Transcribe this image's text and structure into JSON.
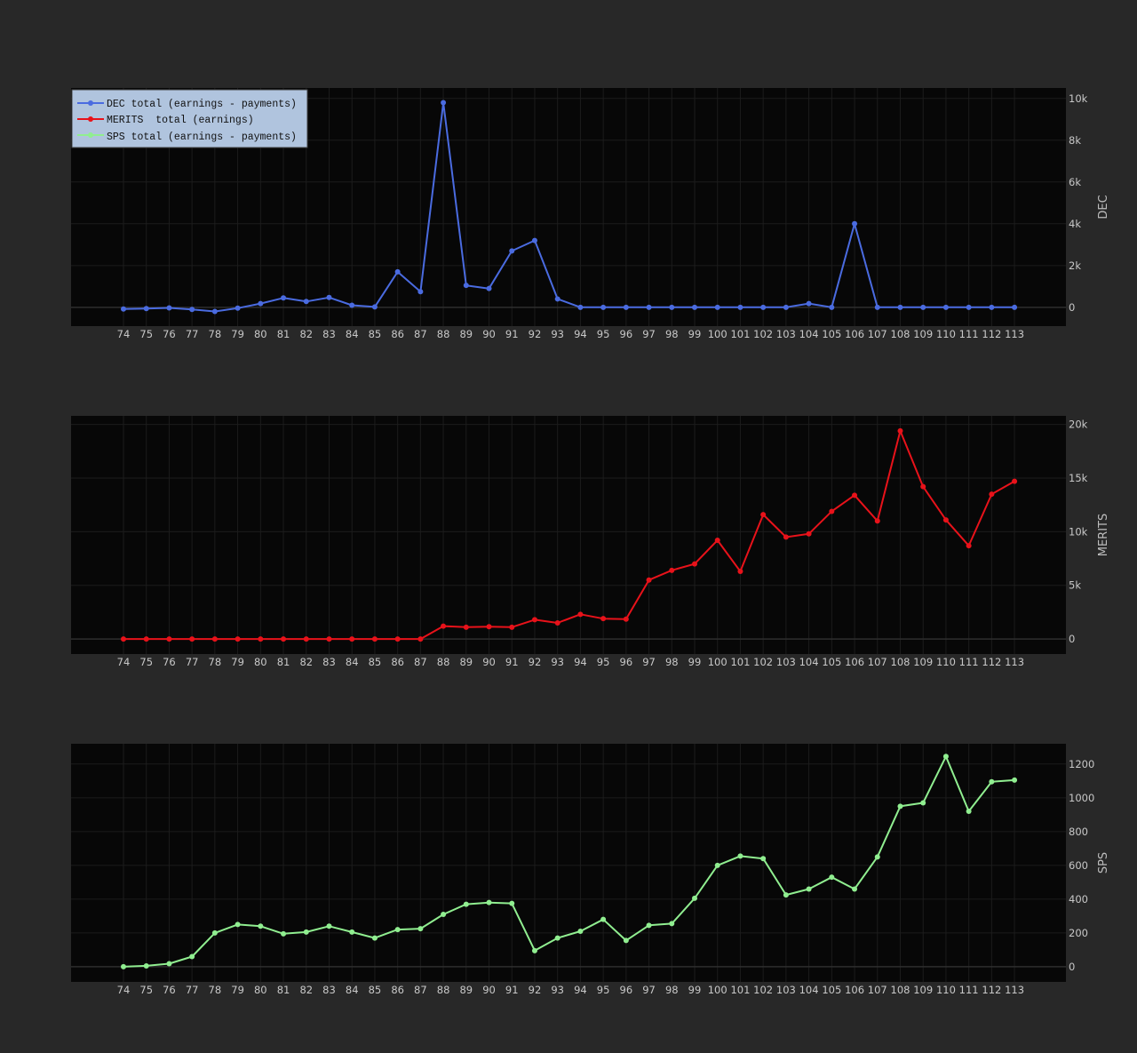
{
  "legend": {
    "items": [
      {
        "label": "DEC total (earnings - payments)",
        "color": "#4a6be0"
      },
      {
        "label": "MERITS  total (earnings)",
        "color": "#e8121a"
      },
      {
        "label": "SPS total (earnings - payments)",
        "color": "#90ee90"
      }
    ]
  },
  "colors": {
    "page_background": "#282828",
    "plot_background": "#070707",
    "legend_background": "#b0c4de"
  },
  "chart_data": [
    {
      "type": "line",
      "series": [
        {
          "name": "DEC total (earnings - payments)",
          "color": "#4a6be0",
          "values": [
            -80,
            -60,
            -30,
            -100,
            -200,
            -40,
            180,
            450,
            280,
            470,
            100,
            20,
            1700,
            750,
            9800,
            1050,
            900,
            2700,
            3200,
            400,
            0,
            0,
            0,
            0,
            0,
            0,
            0,
            0,
            0,
            0,
            180,
            0,
            4000,
            0,
            0,
            0,
            0,
            0,
            0,
            0
          ]
        }
      ],
      "x": [
        "74",
        "75",
        "76",
        "77",
        "78",
        "79",
        "80",
        "81",
        "82",
        "83",
        "84",
        "85",
        "86",
        "87",
        "88",
        "89",
        "90",
        "91",
        "92",
        "93",
        "94",
        "95",
        "96",
        "97",
        "98",
        "99",
        "100",
        "101",
        "102",
        "103",
        "104",
        "105",
        "106",
        "107",
        "108",
        "109",
        "110",
        "111",
        "112",
        "113"
      ],
      "ylabel": "DEC",
      "yticks": [
        0,
        2000,
        4000,
        6000,
        8000,
        10000
      ],
      "ytick_labels": [
        "0",
        "2k",
        "4k",
        "6k",
        "8k",
        "10k"
      ],
      "ylim": [
        -900,
        10500
      ],
      "grid": true,
      "legend_position": "top-left",
      "y_axis_side": "right"
    },
    {
      "type": "line",
      "series": [
        {
          "name": "MERITS  total (earnings)",
          "color": "#e8121a",
          "values": [
            0,
            0,
            0,
            0,
            0,
            0,
            0,
            0,
            0,
            0,
            0,
            0,
            0,
            0,
            1200,
            1100,
            1150,
            1100,
            1800,
            1500,
            2300,
            1900,
            1850,
            5500,
            6400,
            7000,
            9200,
            6300,
            11600,
            9500,
            9800,
            11900,
            13400,
            11000,
            19400,
            14200,
            11100,
            8700,
            13500,
            14700
          ]
        }
      ],
      "x": [
        "74",
        "75",
        "76",
        "77",
        "78",
        "79",
        "80",
        "81",
        "82",
        "83",
        "84",
        "85",
        "86",
        "87",
        "88",
        "89",
        "90",
        "91",
        "92",
        "93",
        "94",
        "95",
        "96",
        "97",
        "98",
        "99",
        "100",
        "101",
        "102",
        "103",
        "104",
        "105",
        "106",
        "107",
        "108",
        "109",
        "110",
        "111",
        "112",
        "113"
      ],
      "ylabel": "MERITS",
      "yticks": [
        0,
        5000,
        10000,
        15000,
        20000
      ],
      "ytick_labels": [
        "0",
        "5k",
        "10k",
        "15k",
        "20k"
      ],
      "ylim": [
        -1400,
        20800
      ],
      "grid": true,
      "y_axis_side": "right"
    },
    {
      "type": "line",
      "series": [
        {
          "name": "SPS total (earnings - payments)",
          "color": "#90ee90",
          "values": [
            0,
            5,
            18,
            60,
            200,
            250,
            240,
            195,
            205,
            240,
            205,
            170,
            220,
            225,
            310,
            370,
            380,
            375,
            95,
            170,
            210,
            280,
            155,
            245,
            255,
            405,
            600,
            655,
            640,
            425,
            460,
            530,
            460,
            650,
            950,
            970,
            1245,
            920,
            1095,
            1105
          ]
        }
      ],
      "x": [
        "74",
        "75",
        "76",
        "77",
        "78",
        "79",
        "80",
        "81",
        "82",
        "83",
        "84",
        "85",
        "86",
        "87",
        "88",
        "89",
        "90",
        "91",
        "92",
        "93",
        "94",
        "95",
        "96",
        "97",
        "98",
        "99",
        "100",
        "101",
        "102",
        "103",
        "104",
        "105",
        "106",
        "107",
        "108",
        "109",
        "110",
        "111",
        "112",
        "113"
      ],
      "ylabel": "SPS",
      "yticks": [
        0,
        200,
        400,
        600,
        800,
        1000,
        1200
      ],
      "ytick_labels": [
        "0",
        "200",
        "400",
        "600",
        "800",
        "1000",
        "1200"
      ],
      "ylim": [
        -90,
        1320
      ],
      "grid": true,
      "y_axis_side": "right"
    }
  ]
}
